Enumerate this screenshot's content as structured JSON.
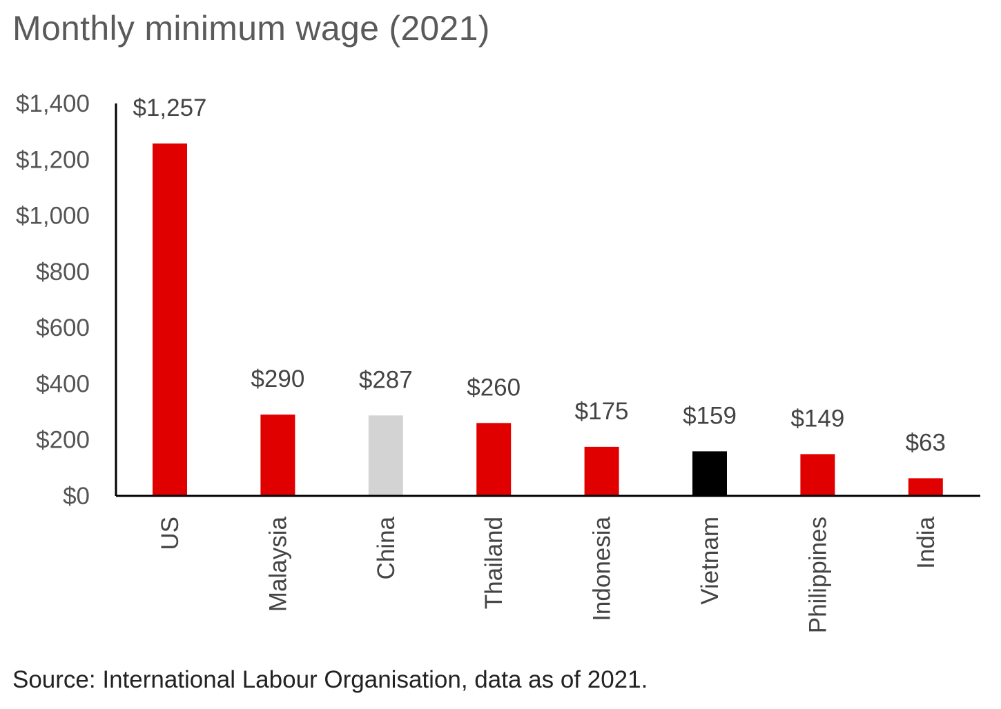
{
  "title": "Monthly minimum wage (2021)",
  "source": "Source: International Labour Organisation, data as of 2021.",
  "colors": {
    "red": "#e10000",
    "grey": "#d3d3d3",
    "black": "#000000",
    "axis": "#000000",
    "tick_text": "#555555",
    "label_text": "#444444"
  },
  "chart_data": {
    "type": "bar",
    "title": "Monthly minimum wage (2021)",
    "xlabel": "",
    "ylabel": "",
    "ylim": [
      0,
      1400
    ],
    "yticks": [
      0,
      200,
      400,
      600,
      800,
      1000,
      1200,
      1400
    ],
    "ytick_labels": [
      "$0",
      "$200",
      "$400",
      "$600",
      "$800",
      "$1,000",
      "$1,200",
      "$1,400"
    ],
    "grid": false,
    "categories": [
      "US",
      "Malaysia",
      "China",
      "Thailand",
      "Indonesia",
      "Vietnam",
      "Philippines",
      "India"
    ],
    "values": [
      1257,
      290,
      287,
      260,
      175,
      159,
      149,
      63
    ],
    "data_labels": [
      "$1,257",
      "$290",
      "$287",
      "$260",
      "$175",
      "$159",
      "$149",
      "$63"
    ],
    "bar_colors": [
      "red",
      "red",
      "grey",
      "red",
      "red",
      "black",
      "red",
      "red"
    ]
  }
}
